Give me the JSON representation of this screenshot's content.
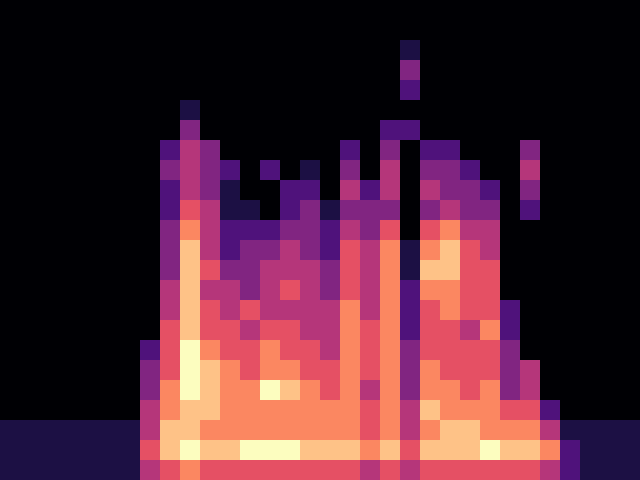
{
  "chart_data": {
    "type": "heatmap",
    "tick_labels": false,
    "cells": [
      [
        0,
        0,
        0,
        0,
        0,
        0,
        0,
        0,
        0,
        0,
        0,
        0,
        0,
        0,
        0,
        0,
        0,
        0,
        0,
        0,
        0,
        0,
        0,
        0,
        0,
        0,
        0,
        0,
        0,
        0,
        0,
        0
      ],
      [
        0,
        0,
        0,
        0,
        0,
        0,
        0,
        0,
        0,
        0,
        0,
        0,
        0,
        0,
        0,
        0,
        0,
        0,
        0,
        0,
        0,
        0,
        0,
        0,
        0,
        0,
        0,
        0,
        0,
        0,
        0,
        0
      ],
      [
        0,
        0,
        0,
        0,
        0,
        0,
        0,
        0,
        0,
        0,
        0,
        0,
        0,
        0,
        0,
        0,
        0,
        0,
        0,
        0,
        1,
        0,
        0,
        0,
        0,
        0,
        0,
        0,
        0,
        0,
        0,
        0
      ],
      [
        0,
        0,
        0,
        0,
        0,
        0,
        0,
        0,
        0,
        0,
        0,
        0,
        0,
        0,
        0,
        0,
        0,
        0,
        0,
        0,
        3,
        0,
        0,
        0,
        0,
        0,
        0,
        0,
        0,
        0,
        0,
        0
      ],
      [
        0,
        0,
        0,
        0,
        0,
        0,
        0,
        0,
        0,
        0,
        0,
        0,
        0,
        0,
        0,
        0,
        0,
        0,
        0,
        0,
        2,
        0,
        0,
        0,
        0,
        0,
        0,
        0,
        0,
        0,
        0,
        0
      ],
      [
        0,
        0,
        0,
        0,
        0,
        0,
        0,
        0,
        0,
        1,
        0,
        0,
        0,
        0,
        0,
        0,
        0,
        0,
        0,
        0,
        0,
        0,
        0,
        0,
        0,
        0,
        0,
        0,
        0,
        0,
        0,
        0
      ],
      [
        0,
        0,
        0,
        0,
        0,
        0,
        0,
        0,
        0,
        3,
        0,
        0,
        0,
        0,
        0,
        0,
        0,
        0,
        0,
        2,
        2,
        0,
        0,
        0,
        0,
        0,
        0,
        0,
        0,
        0,
        0,
        0
      ],
      [
        0,
        0,
        0,
        0,
        0,
        0,
        0,
        0,
        2,
        4,
        3,
        0,
        0,
        0,
        0,
        0,
        0,
        2,
        0,
        3,
        0,
        2,
        2,
        0,
        0,
        0,
        3,
        0,
        0,
        0,
        0,
        0
      ],
      [
        0,
        0,
        0,
        0,
        0,
        0,
        0,
        0,
        3,
        4,
        3,
        2,
        0,
        2,
        0,
        1,
        0,
        3,
        0,
        4,
        0,
        3,
        3,
        2,
        0,
        0,
        4,
        0,
        0,
        0,
        0,
        0
      ],
      [
        0,
        0,
        0,
        0,
        0,
        0,
        0,
        0,
        2,
        4,
        3,
        1,
        0,
        0,
        2,
        2,
        0,
        4,
        2,
        4,
        0,
        4,
        3,
        3,
        2,
        0,
        3,
        0,
        0,
        0,
        0,
        0
      ],
      [
        0,
        0,
        0,
        0,
        0,
        0,
        0,
        0,
        2,
        5,
        4,
        1,
        1,
        0,
        2,
        3,
        1,
        3,
        3,
        3,
        0,
        3,
        4,
        3,
        3,
        0,
        2,
        0,
        0,
        0,
        0,
        0
      ],
      [
        0,
        0,
        0,
        0,
        0,
        0,
        0,
        0,
        3,
        6,
        4,
        2,
        2,
        2,
        3,
        3,
        2,
        4,
        3,
        5,
        0,
        5,
        6,
        4,
        4,
        0,
        0,
        0,
        0,
        0,
        0,
        0
      ],
      [
        0,
        0,
        0,
        0,
        0,
        0,
        0,
        0,
        3,
        7,
        4,
        2,
        3,
        3,
        4,
        3,
        2,
        5,
        4,
        6,
        1,
        6,
        7,
        5,
        4,
        0,
        0,
        0,
        0,
        0,
        0,
        0
      ],
      [
        0,
        0,
        0,
        0,
        0,
        0,
        0,
        0,
        3,
        7,
        5,
        3,
        3,
        4,
        4,
        4,
        3,
        5,
        4,
        6,
        1,
        7,
        7,
        5,
        5,
        0,
        0,
        0,
        0,
        0,
        0,
        0
      ],
      [
        0,
        0,
        0,
        0,
        0,
        0,
        0,
        0,
        4,
        7,
        4,
        4,
        3,
        4,
        5,
        4,
        3,
        5,
        4,
        6,
        2,
        6,
        6,
        5,
        5,
        0,
        0,
        0,
        0,
        0,
        0,
        0
      ],
      [
        0,
        0,
        0,
        0,
        0,
        0,
        0,
        0,
        4,
        7,
        5,
        4,
        5,
        4,
        4,
        4,
        4,
        6,
        4,
        6,
        2,
        5,
        6,
        5,
        5,
        2,
        0,
        0,
        0,
        0,
        0,
        0
      ],
      [
        0,
        0,
        0,
        0,
        0,
        0,
        0,
        0,
        5,
        7,
        5,
        5,
        4,
        5,
        5,
        4,
        4,
        6,
        5,
        6,
        2,
        5,
        5,
        4,
        6,
        2,
        0,
        0,
        0,
        0,
        0,
        0
      ],
      [
        0,
        0,
        0,
        0,
        0,
        0,
        0,
        2,
        5,
        8,
        6,
        5,
        5,
        6,
        5,
        5,
        4,
        6,
        5,
        6,
        3,
        5,
        5,
        5,
        5,
        3,
        0,
        0,
        0,
        0,
        0,
        0
      ],
      [
        0,
        0,
        0,
        0,
        0,
        0,
        0,
        3,
        5,
        8,
        7,
        6,
        5,
        6,
        6,
        5,
        5,
        6,
        5,
        6,
        3,
        6,
        5,
        5,
        5,
        3,
        4,
        0,
        0,
        0,
        0,
        0
      ],
      [
        0,
        0,
        0,
        0,
        0,
        0,
        0,
        3,
        6,
        8,
        7,
        6,
        6,
        8,
        7,
        6,
        5,
        6,
        4,
        6,
        3,
        6,
        6,
        5,
        6,
        3,
        4,
        0,
        0,
        0,
        0,
        0
      ],
      [
        0,
        0,
        0,
        0,
        0,
        0,
        0,
        4,
        6,
        7,
        7,
        6,
        6,
        6,
        6,
        6,
        6,
        6,
        5,
        6,
        4,
        7,
        6,
        6,
        6,
        5,
        5,
        2,
        0,
        0,
        0,
        0
      ],
      [
        1,
        1,
        1,
        1,
        1,
        1,
        1,
        4,
        7,
        7,
        6,
        6,
        6,
        6,
        6,
        6,
        6,
        6,
        5,
        6,
        4,
        6,
        7,
        7,
        6,
        6,
        6,
        4,
        1,
        1,
        1,
        1
      ],
      [
        1,
        1,
        1,
        1,
        1,
        1,
        1,
        5,
        7,
        8,
        7,
        7,
        8,
        8,
        8,
        7,
        7,
        7,
        6,
        7,
        5,
        7,
        7,
        7,
        8,
        7,
        7,
        6,
        2,
        1,
        1,
        1
      ],
      [
        1,
        1,
        1,
        1,
        1,
        1,
        1,
        4,
        5,
        6,
        5,
        5,
        5,
        5,
        5,
        5,
        5,
        5,
        4,
        5,
        4,
        5,
        5,
        5,
        5,
        5,
        5,
        4,
        2,
        1,
        1,
        1
      ]
    ]
  }
}
